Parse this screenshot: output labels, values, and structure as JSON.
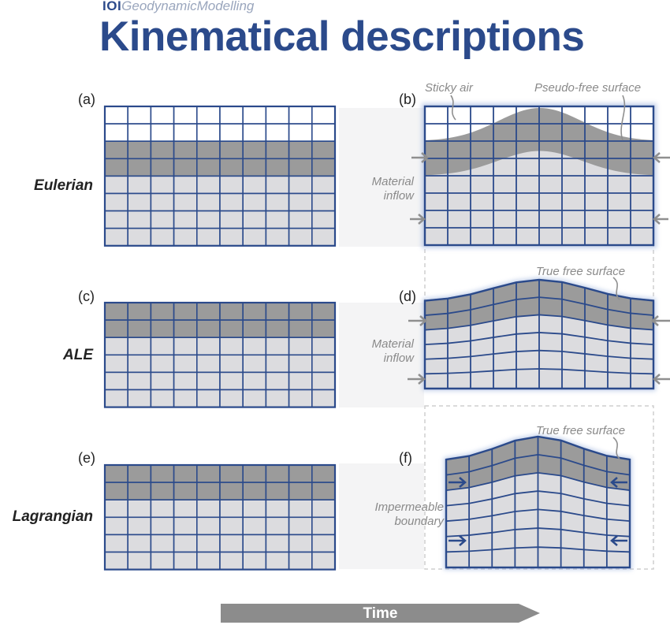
{
  "header": {
    "brand_mark": "IOI",
    "brand_name": "GeodynamicModelling",
    "title": "Kinematical descriptions"
  },
  "rows": [
    {
      "label": "Eulerian",
      "left_panel": "(a)",
      "right_panel": "(b)"
    },
    {
      "label": "ALE",
      "left_panel": "(c)",
      "right_panel": "(d)"
    },
    {
      "label": "Lagrangian",
      "left_panel": "(e)",
      "right_panel": "(f)"
    }
  ],
  "annotations": {
    "sticky_air": "Sticky air",
    "pseudo_free_surface": "Pseudo-free surface",
    "material_inflow_line1": "Material",
    "material_inflow_line2": "inflow",
    "true_free_surface": "True free surface",
    "impermeable_line1": "Impermeable",
    "impermeable_line2": "boundary"
  },
  "time_arrow": "Time",
  "colors": {
    "grid_line": "#2b4a8b",
    "air": "#ffffff",
    "layer": "#9b9b9b",
    "mantle": "#dcdcdf",
    "arrow": "#8f8f8f",
    "time_arrow": "#8c8c8c",
    "title": "#2b4a8b"
  }
}
